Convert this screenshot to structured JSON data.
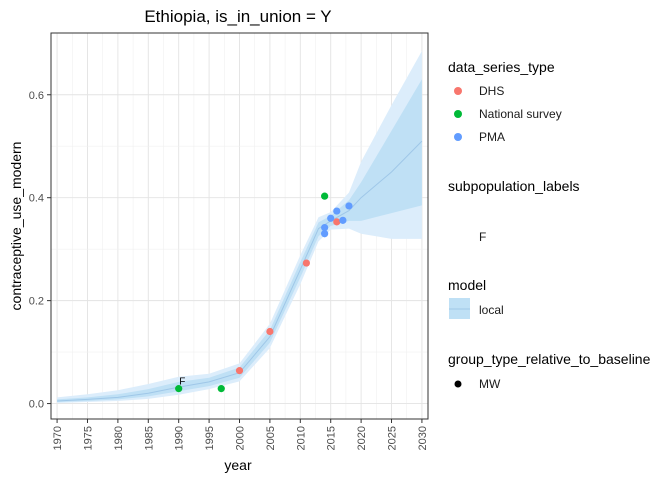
{
  "chart_data": {
    "type": "line",
    "title": "Ethiopia, is_in_union = Y",
    "xlabel": "year",
    "ylabel": "contraceptive_use_modern",
    "xlim": [
      1969,
      2031
    ],
    "ylim": [
      -0.03,
      0.72
    ],
    "x_ticks": [
      1970,
      1975,
      1980,
      1985,
      1990,
      1995,
      2000,
      2005,
      2010,
      2015,
      2020,
      2025,
      2030
    ],
    "y_ticks": [
      0.0,
      0.2,
      0.4,
      0.6
    ],
    "y_tick_labels": [
      "0.0",
      "0.2",
      "0.4",
      "0.6"
    ],
    "grid": true,
    "model": {
      "name": "local",
      "x": [
        1970,
        1975,
        1980,
        1985,
        1990,
        1995,
        2000,
        2005,
        2010,
        2013,
        2015,
        2018,
        2020,
        2025,
        2030
      ],
      "median": [
        0.005,
        0.008,
        0.012,
        0.02,
        0.032,
        0.042,
        0.06,
        0.13,
        0.26,
        0.34,
        0.355,
        0.375,
        0.4,
        0.45,
        0.51
      ],
      "inner_lower": [
        0.003,
        0.005,
        0.008,
        0.014,
        0.024,
        0.034,
        0.05,
        0.118,
        0.245,
        0.325,
        0.345,
        0.355,
        0.355,
        0.37,
        0.385
      ],
      "inner_upper": [
        0.008,
        0.012,
        0.018,
        0.028,
        0.042,
        0.05,
        0.07,
        0.143,
        0.275,
        0.352,
        0.365,
        0.395,
        0.43,
        0.53,
        0.63
      ],
      "outer_lower": [
        0.001,
        0.003,
        0.005,
        0.009,
        0.017,
        0.028,
        0.043,
        0.108,
        0.232,
        0.315,
        0.338,
        0.34,
        0.33,
        0.32,
        0.32
      ],
      "outer_upper": [
        0.012,
        0.018,
        0.026,
        0.038,
        0.052,
        0.058,
        0.078,
        0.155,
        0.288,
        0.362,
        0.372,
        0.41,
        0.47,
        0.58,
        0.685
      ],
      "line_color": "#9fc7e8",
      "inner_band_color": "#bfe0f5",
      "outer_band_color": "#dcedfb"
    },
    "points": [
      {
        "x": 1990,
        "y": 0.029,
        "series": "National survey",
        "label": "F"
      },
      {
        "x": 1997,
        "y": 0.029,
        "series": "National survey"
      },
      {
        "x": 2000,
        "y": 0.064,
        "series": "DHS"
      },
      {
        "x": 2005,
        "y": 0.14,
        "series": "DHS"
      },
      {
        "x": 2011,
        "y": 0.273,
        "series": "DHS"
      },
      {
        "x": 2014,
        "y": 0.33,
        "series": "PMA"
      },
      {
        "x": 2014,
        "y": 0.342,
        "series": "PMA"
      },
      {
        "x": 2014,
        "y": 0.403,
        "series": "National survey"
      },
      {
        "x": 2015,
        "y": 0.36,
        "series": "PMA"
      },
      {
        "x": 2016,
        "y": 0.374,
        "series": "PMA"
      },
      {
        "x": 2016,
        "y": 0.353,
        "series": "DHS"
      },
      {
        "x": 2017,
        "y": 0.356,
        "series": "PMA"
      },
      {
        "x": 2018,
        "y": 0.384,
        "series": "PMA"
      }
    ],
    "series_colors": {
      "DHS": "#f8766d",
      "National survey": "#00ba38",
      "PMA": "#619cff"
    }
  },
  "legend": {
    "data_series_type": {
      "title": "data_series_type",
      "items": [
        "DHS",
        "National survey",
        "PMA"
      ]
    },
    "subpopulation_labels": {
      "title": "subpopulation_labels",
      "items": [
        "F"
      ]
    },
    "model": {
      "title": "model",
      "items": [
        "local"
      ]
    },
    "group_type": {
      "title": "group_type_relative_to_baseline",
      "items": [
        "MW"
      ]
    }
  }
}
